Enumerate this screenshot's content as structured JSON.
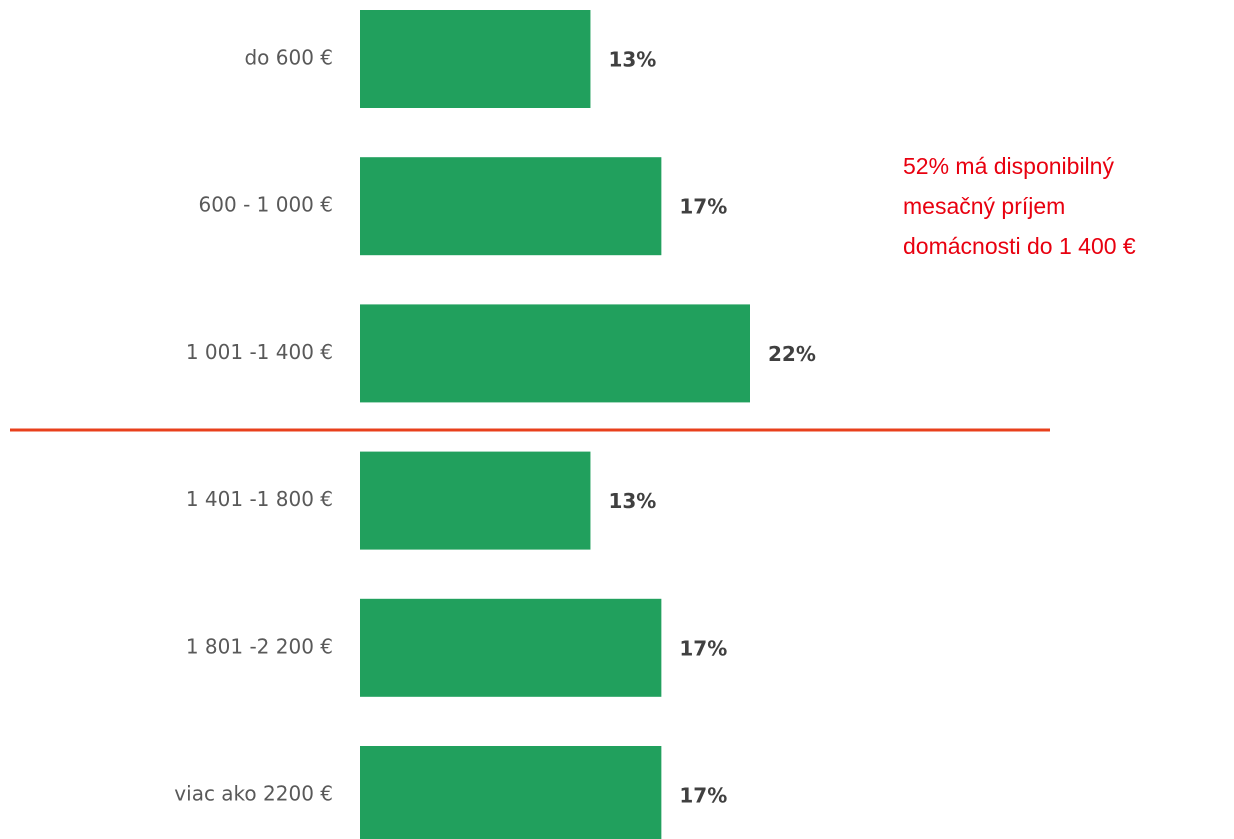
{
  "chart_data": {
    "type": "bar",
    "orientation": "horizontal",
    "categories": [
      "do 600 €",
      "600 - 1 000 €",
      "1 001 -1 400 €",
      "1 401 -1 800 €",
      "1 801 -2 200 €",
      "viac ako 2200 €"
    ],
    "values": [
      13,
      17,
      22,
      13,
      17,
      17
    ],
    "value_labels": [
      "13%",
      "17%",
      "22%",
      "13%",
      "17%",
      "17%"
    ],
    "color": "#21a05d",
    "annotation": [
      "52% má disponibilný",
      "mesačný príjem",
      "domácnosti do 1 400 €"
    ]
  }
}
